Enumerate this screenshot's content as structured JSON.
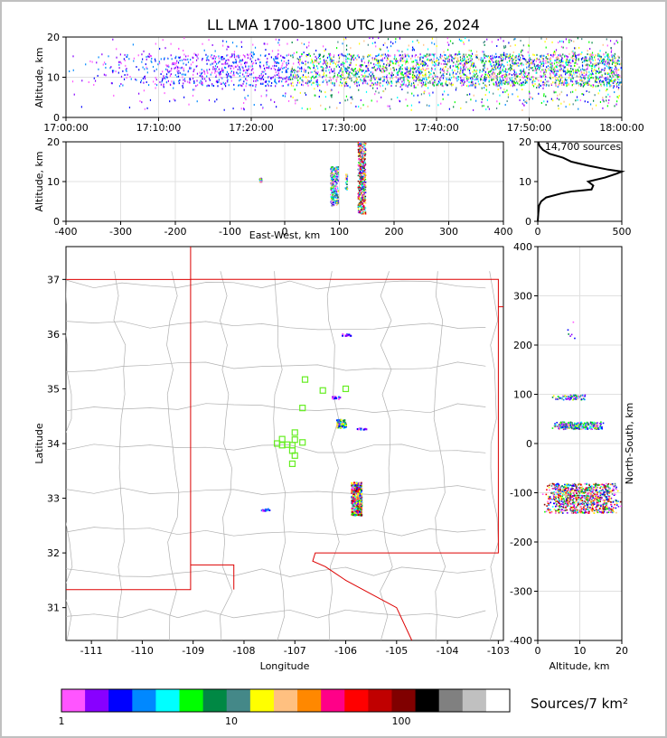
{
  "chart_data": [
    {
      "panel": "altitude-vs-time",
      "type": "scatter",
      "title": "LL LMA 1700-1800 UTC June 26, 2024",
      "ylabel": "Altitude, km",
      "xlim": [
        "17:00:00",
        "18:00:00"
      ],
      "ylim": [
        0,
        20
      ],
      "xticks": [
        "17:00:00",
        "17:10:00",
        "17:20:00",
        "17:30:00",
        "17:40:00",
        "17:50:00",
        "18:00:00"
      ],
      "yticks": [
        0,
        10,
        20
      ],
      "grid": true,
      "summary": "dense sources between 8 and 16 km throughout the hour, increasing after 17:25"
    },
    {
      "panel": "altitude-vs-east-west",
      "type": "scatter",
      "xlabel": "East-West, km",
      "ylabel": "Altitude, km",
      "xlim": [
        -400,
        400
      ],
      "ylim": [
        0,
        20
      ],
      "xticks": [
        -400,
        -300,
        -200,
        -100,
        0,
        100,
        200,
        300,
        400
      ],
      "yticks": [
        0,
        10,
        20
      ],
      "grid": true,
      "clusters": [
        {
          "x": 90,
          "altitude_range": [
            4,
            14
          ]
        },
        {
          "x": 140,
          "altitude_range": [
            2,
            20
          ]
        },
        {
          "x": 112,
          "altitude_range": [
            8,
            12
          ]
        },
        {
          "x": -45,
          "altitude_range": [
            10,
            11
          ]
        }
      ]
    },
    {
      "panel": "altitude-histogram",
      "type": "line",
      "annotation": "14,700 sources",
      "xlim": [
        0,
        500
      ],
      "ylim": [
        0,
        20
      ],
      "xticks": [
        0,
        500
      ],
      "yticks": [
        0,
        10,
        20
      ],
      "altitude": [
        0,
        2,
        4,
        5,
        6,
        7,
        7.5,
        8,
        9,
        10,
        11,
        12,
        12.5,
        13,
        14,
        15,
        16,
        17,
        18,
        19,
        20
      ],
      "count": [
        0,
        3,
        8,
        20,
        50,
        140,
        200,
        320,
        330,
        300,
        400,
        470,
        500,
        420,
        300,
        200,
        150,
        70,
        30,
        10,
        3
      ]
    },
    {
      "panel": "plan-view",
      "type": "scatter",
      "xlabel": "Longitude",
      "ylabel": "Latitude",
      "xlim": [
        -111.5,
        -102.9
      ],
      "ylim": [
        30.4,
        37.6
      ],
      "xticks": [
        -111,
        -110,
        -109,
        -108,
        -107,
        -106,
        -105,
        -104,
        -103
      ],
      "yticks": [
        31,
        32,
        33,
        34,
        35,
        36,
        37
      ],
      "stations": [
        [
          -106.8,
          35.17
        ],
        [
          -106.45,
          34.97
        ],
        [
          -106.0,
          35.0
        ],
        [
          -106.85,
          34.65
        ],
        [
          -107.0,
          34.2
        ],
        [
          -107.0,
          34.07
        ],
        [
          -107.25,
          34.08
        ],
        [
          -107.35,
          34.0
        ],
        [
          -107.25,
          33.97
        ],
        [
          -107.15,
          33.98
        ],
        [
          -107.05,
          33.97
        ],
        [
          -106.85,
          34.02
        ],
        [
          -107.05,
          33.87
        ],
        [
          -107.0,
          33.78
        ],
        [
          -107.05,
          33.63
        ]
      ],
      "source_clusters": [
        {
          "lon": -105.8,
          "lat_range": [
            32.7,
            33.3
          ],
          "level": "high"
        },
        {
          "lon": -106.1,
          "lat_range": [
            34.3,
            34.45
          ],
          "level": "medium"
        },
        {
          "lon": -106.2,
          "lat_range": [
            34.83,
            34.88
          ],
          "level": "low"
        },
        {
          "lon": -105.7,
          "lat_range": [
            34.27,
            34.29
          ],
          "level": "low"
        },
        {
          "lon": -106.0,
          "lat_range": [
            35.98,
            36.02
          ],
          "level": "low"
        },
        {
          "lon": -107.6,
          "lat_range": [
            32.78,
            32.83
          ],
          "level": "low"
        }
      ]
    },
    {
      "panel": "north-south-vs-altitude",
      "type": "scatter",
      "xlabel": "Altitude, km",
      "ylabel": "North-South, km",
      "xlim": [
        0,
        20
      ],
      "ylim": [
        -400,
        400
      ],
      "xticks": [
        0,
        10,
        20
      ],
      "yticks": [
        -400,
        -300,
        -200,
        -100,
        0,
        100,
        200,
        300,
        400
      ],
      "grid": true,
      "clusters": [
        {
          "ns_range": [
            -140,
            -80
          ],
          "altitude_range": [
            1,
            20
          ]
        },
        {
          "ns_range": [
            30,
            45
          ],
          "altitude_range": [
            3,
            16
          ]
        },
        {
          "ns_range": [
            90,
            100
          ],
          "altitude_range": [
            3,
            12
          ]
        },
        {
          "ns_range": [
            210,
            250
          ],
          "altitude_range": [
            6,
            9
          ]
        }
      ]
    }
  ],
  "colorbar": {
    "label": "Sources/7 km²",
    "ticks": [
      "1",
      "10",
      "100"
    ],
    "colors": [
      "#ff55ff",
      "#8800ff",
      "#0000ff",
      "#0088ff",
      "#00ffff",
      "#00ff00",
      "#008844",
      "#448888",
      "#ffff00",
      "#ffc080",
      "#ff8800",
      "#ff0088",
      "#ff0000",
      "#c00000",
      "#800000",
      "#000000",
      "#808080",
      "#c0c0c0",
      "#ffffff"
    ]
  }
}
